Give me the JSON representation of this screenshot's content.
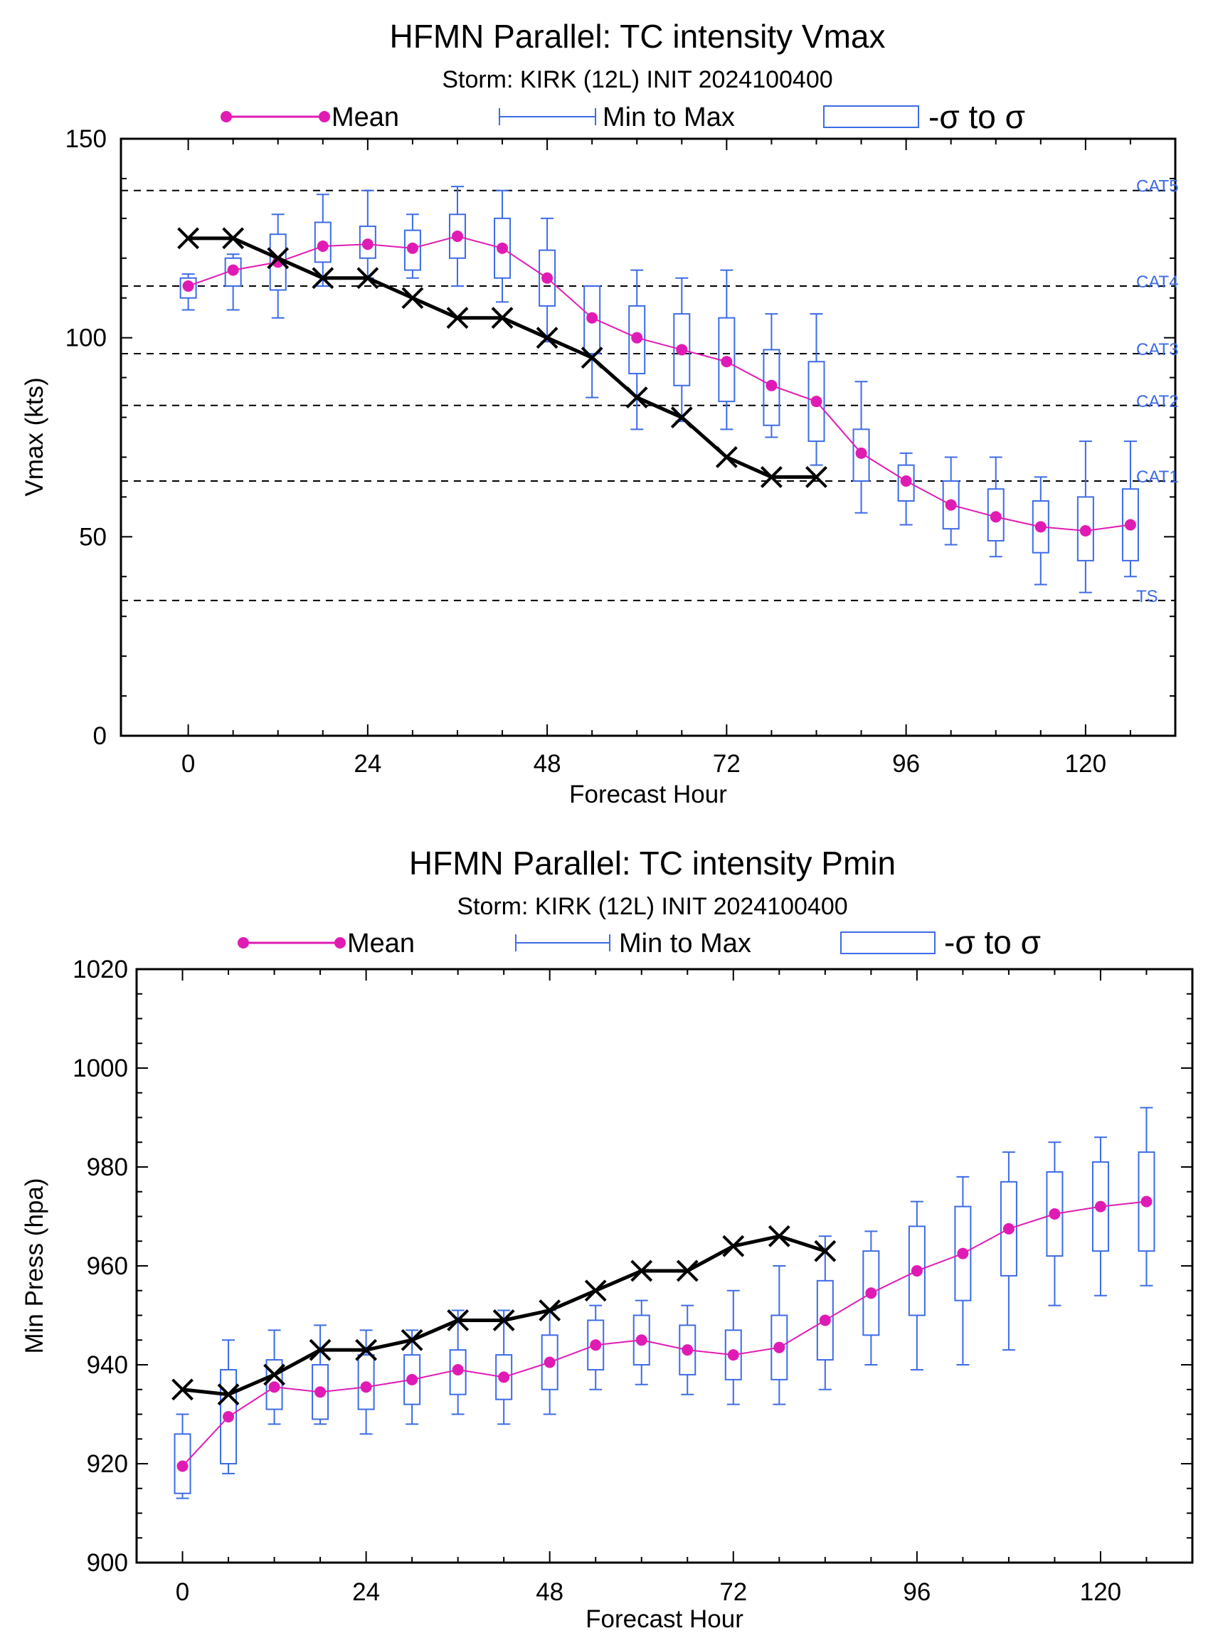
{
  "colors": {
    "mean": "#E01BB4",
    "ensemble": "#3D6BE8",
    "best_track": "#000000",
    "threshold_line": "#000000"
  },
  "legend": {
    "mean_label": "Mean",
    "range_label": "Min to Max",
    "sigma_label": "-σ to σ"
  },
  "chart_data": [
    {
      "type": "line",
      "title": "HFMN Parallel: TC intensity Vmax",
      "subtitle": "Storm: KIRK (12L) INIT 2024100400",
      "xlabel": "Forecast Hour",
      "ylabel": "Vmax (kts)",
      "xlim": [
        -9,
        132
      ],
      "ylim": [
        0,
        150
      ],
      "xticks": [
        0,
        24,
        48,
        72,
        96,
        120
      ],
      "yticks": [
        0,
        50,
        100,
        150
      ],
      "y_minor_step": 10,
      "x_minor_step": 6,
      "thresholds": [
        {
          "label": "CAT5",
          "value": 137
        },
        {
          "label": "CAT4",
          "value": 113
        },
        {
          "label": "CAT3",
          "value": 96
        },
        {
          "label": "CAT2",
          "value": 83
        },
        {
          "label": "CAT1",
          "value": 64
        },
        {
          "label": "TS",
          "value": 34
        }
      ],
      "x": [
        0,
        6,
        12,
        18,
        24,
        30,
        36,
        42,
        48,
        54,
        60,
        66,
        72,
        78,
        84,
        90,
        96,
        102,
        108,
        114,
        120,
        126
      ],
      "mean": [
        113,
        117,
        119,
        123,
        123.5,
        122.5,
        125.5,
        122.5,
        115,
        105,
        100,
        97,
        94,
        88,
        84,
        71,
        64,
        58,
        55,
        52.5,
        51.5,
        53
      ],
      "min": [
        107,
        107,
        105,
        113,
        115,
        115,
        113,
        109,
        99,
        85,
        77,
        79,
        77,
        75,
        68,
        56,
        53,
        48,
        45,
        38,
        36,
        40
      ],
      "max": [
        116,
        121,
        131,
        136,
        137,
        131,
        138,
        137,
        130,
        113,
        117,
        115,
        117,
        106,
        106,
        89,
        71,
        70,
        70,
        65,
        74,
        74
      ],
      "sigma_low": [
        110,
        113,
        112,
        119,
        120,
        117,
        120,
        115,
        108,
        96,
        91,
        88,
        84,
        78,
        74,
        64,
        59,
        52,
        49,
        46,
        44,
        44
      ],
      "sigma_high": [
        115,
        120,
        126,
        129,
        128,
        127,
        131,
        130,
        122,
        113,
        108,
        106,
        105,
        97,
        94,
        77,
        68,
        64,
        62,
        59,
        60,
        62
      ],
      "best_track_x": [
        0,
        6,
        12,
        18,
        24,
        30,
        36,
        42,
        48,
        54,
        60,
        66,
        72,
        78,
        84
      ],
      "best_track": [
        125,
        125,
        120,
        115,
        115,
        110,
        105,
        105,
        100,
        95,
        85,
        80,
        70,
        65,
        65
      ]
    },
    {
      "type": "line",
      "title": "HFMN Parallel: TC intensity Pmin",
      "subtitle": "Storm: KIRK (12L) INIT 2024100400",
      "xlabel": "Forecast Hour",
      "ylabel": "Min Press (hpa)",
      "xlim": [
        -6,
        132
      ],
      "ylim": [
        900,
        1020
      ],
      "xticks": [
        0,
        24,
        48,
        72,
        96,
        120
      ],
      "yticks": [
        900,
        920,
        940,
        960,
        980,
        1000,
        1020
      ],
      "y_minor_step": 5,
      "x_minor_step": 6,
      "thresholds": [],
      "x": [
        0,
        6,
        12,
        18,
        24,
        30,
        36,
        42,
        48,
        54,
        60,
        66,
        72,
        78,
        84,
        90,
        96,
        102,
        108,
        114,
        120,
        126
      ],
      "mean": [
        919.5,
        929.5,
        935.5,
        934.5,
        935.5,
        937,
        939,
        937.5,
        940.5,
        944,
        945,
        943,
        942,
        943.5,
        949,
        954.5,
        959,
        962.5,
        967.5,
        970.5,
        972,
        973
      ],
      "min": [
        913,
        918,
        928,
        928,
        926,
        928,
        930,
        928,
        930,
        935,
        936,
        934,
        932,
        932,
        935,
        940,
        939,
        940,
        943,
        952,
        954,
        956
      ],
      "max": [
        930,
        945,
        947,
        948,
        947,
        947,
        951,
        951,
        951,
        952,
        953,
        952,
        955,
        960,
        966,
        967,
        973,
        978,
        983,
        985,
        986,
        992
      ],
      "sigma_low": [
        914,
        920,
        931,
        929,
        931,
        932,
        934,
        933,
        935,
        939,
        940,
        938,
        937,
        937,
        941,
        946,
        950,
        953,
        958,
        962,
        963,
        963
      ],
      "sigma_high": [
        926,
        939,
        941,
        940,
        942,
        942,
        943,
        942,
        946,
        949,
        950,
        948,
        947,
        950,
        957,
        963,
        968,
        972,
        977,
        979,
        981,
        983
      ],
      "best_track_x": [
        0,
        6,
        12,
        18,
        24,
        30,
        36,
        42,
        48,
        54,
        60,
        66,
        72,
        78,
        84
      ],
      "best_track": [
        935,
        934,
        938,
        943,
        943,
        945,
        949,
        949,
        951,
        955,
        959,
        959,
        964,
        966,
        963
      ]
    }
  ]
}
